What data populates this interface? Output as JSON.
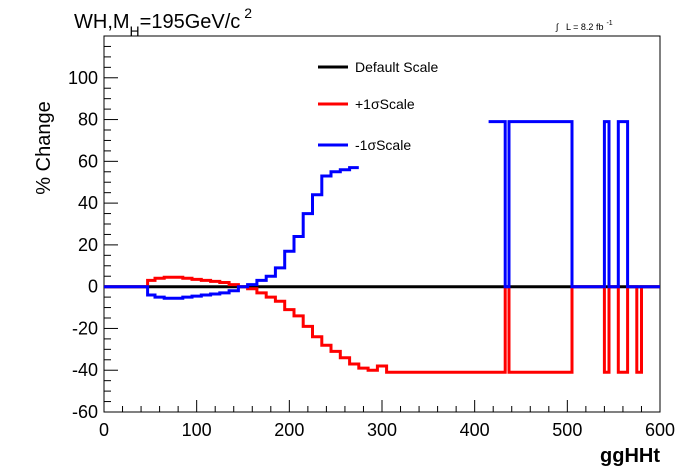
{
  "title": {
    "main": "WH,M",
    "sub": "H",
    "rest": "=195GeV/c",
    "sup": "2"
  },
  "lumi": {
    "integral": "∫",
    "text": "L = 8.2 fb",
    "sup": "-1"
  },
  "chart_data": {
    "type": "line",
    "xlabel": "ggHHt",
    "ylabel": "% Change",
    "xlim": [
      0,
      600
    ],
    "ylim": [
      -60,
      120
    ],
    "xticks": [
      0,
      100,
      200,
      300,
      400,
      500,
      600
    ],
    "yticks": [
      -60,
      -40,
      -20,
      0,
      20,
      40,
      60,
      80,
      100
    ],
    "grid": false,
    "legend_position": "top-center",
    "series": [
      {
        "name": "Default Scale",
        "color": "#000000",
        "step": true,
        "x": [
          0,
          600
        ],
        "y": [
          0,
          0
        ]
      },
      {
        "name": "+1σScale",
        "color": "#ff0000",
        "step": true,
        "x": [
          0,
          47,
          55,
          65,
          75,
          85,
          95,
          105,
          115,
          125,
          135,
          145,
          155,
          165,
          175,
          185,
          195,
          205,
          215,
          225,
          235,
          245,
          255,
          265,
          275,
          285,
          295,
          305,
          315,
          325,
          335,
          345,
          355,
          365,
          375,
          385,
          395,
          405,
          415,
          425,
          433,
          437,
          447,
          455,
          465,
          475,
          485,
          495,
          505,
          540,
          545,
          555,
          565,
          575,
          580,
          600
        ],
        "y": [
          0,
          3,
          4,
          4.5,
          4.5,
          4,
          3.5,
          3,
          2.5,
          2,
          1,
          0,
          -1,
          -3,
          -5,
          -7,
          -11,
          -14,
          -19,
          -24,
          -28,
          -31,
          -34,
          -37,
          -39,
          -40,
          -38,
          -41,
          -41,
          -41,
          -41,
          -41,
          -41,
          -41,
          -41,
          -41,
          -41,
          -41,
          -41,
          -41,
          0,
          -41,
          -41,
          -41,
          -41,
          -41,
          -41,
          -41,
          0,
          -41,
          0,
          -41,
          0,
          -41,
          0,
          0
        ]
      },
      {
        "name": "-1σScale",
        "color": "#0000ff",
        "step": true,
        "x": [
          0,
          47,
          55,
          65,
          75,
          85,
          95,
          105,
          115,
          125,
          135,
          145,
          155,
          165,
          175,
          185,
          195,
          205,
          215,
          225,
          235,
          245,
          255,
          265,
          275,
          280,
          415,
          433,
          437,
          447,
          455,
          465,
          475,
          485,
          495,
          505,
          540,
          545,
          555,
          565,
          575,
          580,
          600
        ],
        "y": [
          0,
          -4,
          -5,
          -5.5,
          -5.5,
          -5,
          -4.5,
          -4,
          -3.5,
          -3,
          -2,
          0,
          1,
          3,
          5,
          9,
          17,
          24,
          35,
          44,
          53,
          55,
          56,
          57,
          null,
          null,
          79,
          0,
          79,
          79,
          79,
          79,
          79,
          79,
          79,
          0,
          79,
          0,
          79,
          0,
          0,
          0,
          0
        ]
      }
    ]
  }
}
